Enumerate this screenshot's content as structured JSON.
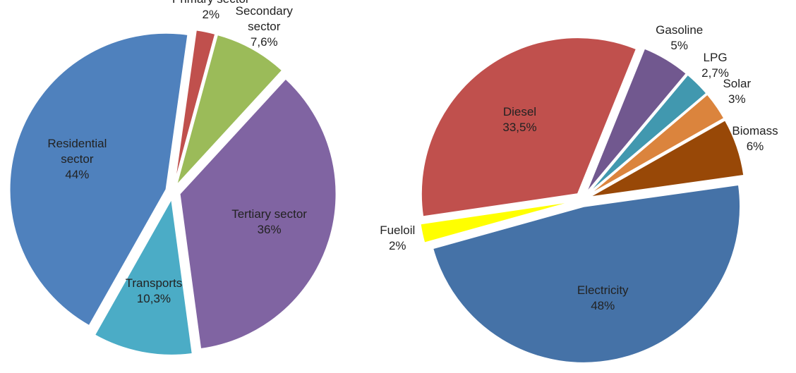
{
  "chart_data": [
    {
      "type": "pie",
      "categories": [
        "Primary sector",
        "Secondary sector",
        "Tertiary sector",
        "Transports",
        "Residential sector"
      ],
      "values": [
        2,
        7.6,
        36,
        10.3,
        44
      ],
      "value_labels": [
        "2%",
        "7,6%",
        "36%",
        "10,3%",
        "44%"
      ],
      "colors": [
        "#c0504d",
        "#9bbb59",
        "#8064a2",
        "#4bacc6",
        "#4f81bd"
      ]
    },
    {
      "type": "pie",
      "categories": [
        "Gasoline",
        "LPG",
        "Solar",
        "Biomass",
        "Electricity",
        "Fueloil",
        "Diesel"
      ],
      "values": [
        5,
        2.7,
        3,
        6,
        48,
        2,
        33.5
      ],
      "value_labels": [
        "5%",
        "2,7%",
        "3%",
        "6%",
        "48%",
        "2%",
        "33,5%"
      ],
      "colors": [
        "#71588f",
        "#4198af",
        "#db843d",
        "#984807",
        "#4572a7",
        "#ffff00",
        "#c0504d"
      ]
    }
  ]
}
